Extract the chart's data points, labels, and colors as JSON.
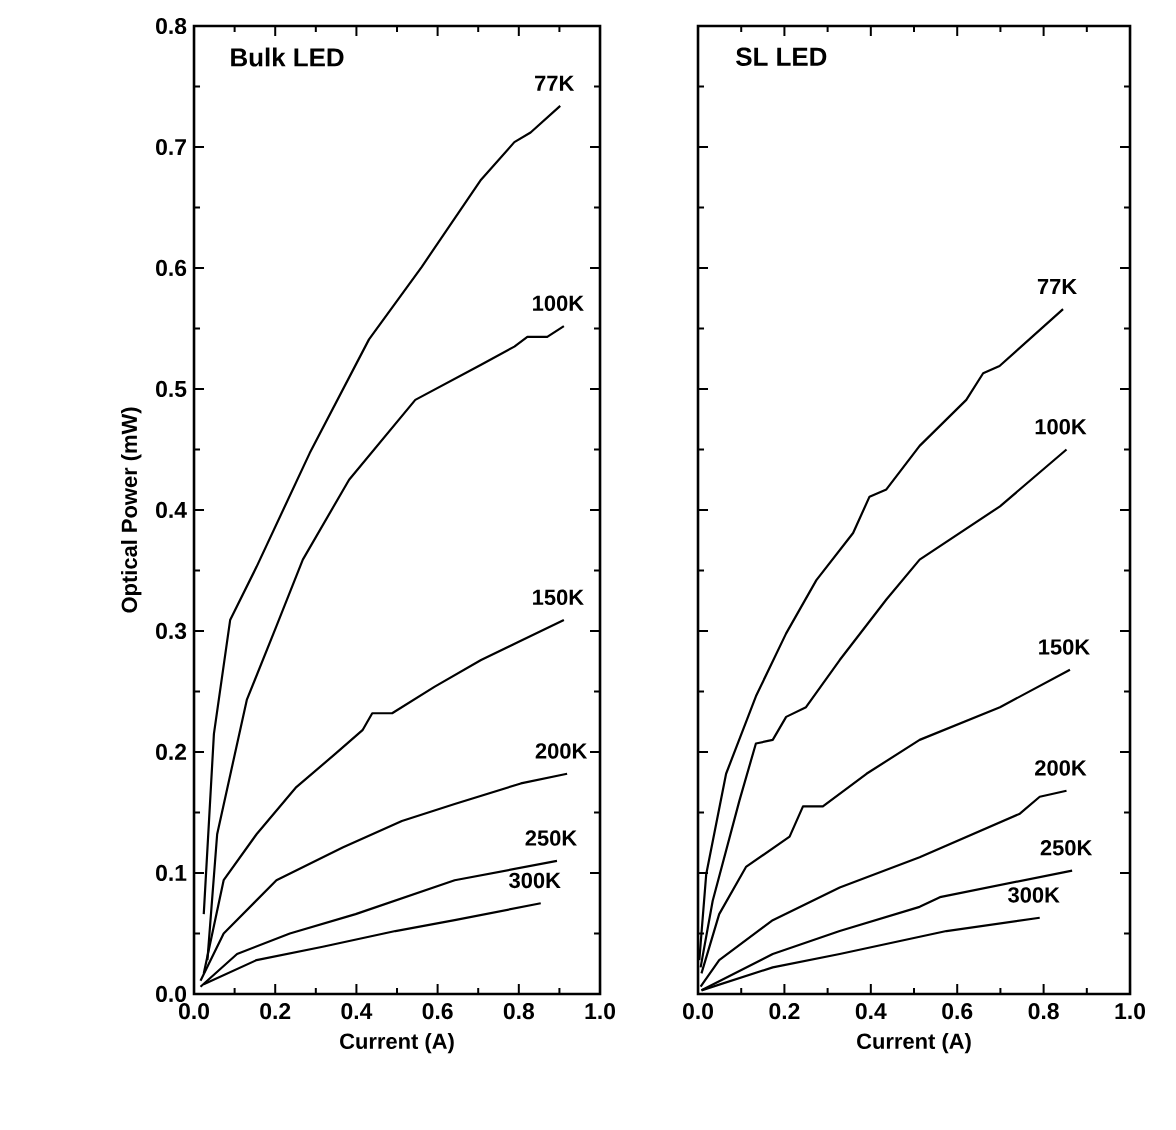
{
  "chart_data": [
    {
      "type": "line",
      "title": "Bulk LED",
      "xlabel": "Current (A)",
      "ylabel": "Optical Power (mW)",
      "xlim": [
        0,
        1
      ],
      "ylim": [
        0,
        0.8
      ],
      "xticks": [
        {
          "value": 0,
          "label": "0.0"
        },
        {
          "value": 0.2,
          "label": "0.2"
        },
        {
          "value": 0.4,
          "label": "0.4"
        },
        {
          "value": 0.6,
          "label": "0.6"
        },
        {
          "value": 0.8,
          "label": "0.8"
        },
        {
          "value": 1,
          "label": "1.0"
        }
      ],
      "yticks": [
        {
          "value": 0,
          "label": "0.0"
        },
        0.1,
        0.2,
        0.3,
        0.4,
        0.5,
        0.6,
        0.7,
        0.8
      ],
      "marker": "none",
      "line_style": "solid",
      "grid": false,
      "legend": "right",
      "series": [
        {
          "name": "77K",
          "color": "#000000",
          "x": [
            0.024,
            0.049,
            0.089,
            0.154,
            0.285,
            0.431,
            0.561,
            0.707,
            0.789,
            0.829,
            0.902
          ],
          "values": [
            0.066,
            0.215,
            0.309,
            0.353,
            0.447,
            0.541,
            0.601,
            0.673,
            0.704,
            0.712,
            0.734
          ]
        },
        {
          "name": "100K",
          "color": "#000000",
          "x": [
            0.033,
            0.057,
            0.13,
            0.203,
            0.268,
            0.382,
            0.545,
            0.707,
            0.789,
            0.821,
            0.87,
            0.911
          ],
          "values": [
            0.028,
            0.132,
            0.243,
            0.304,
            0.359,
            0.425,
            0.491,
            0.52,
            0.535,
            0.543,
            0.543,
            0.552
          ]
        },
        {
          "name": "150K",
          "color": "#000000",
          "x": [
            0.024,
            0.073,
            0.154,
            0.252,
            0.35,
            0.415,
            0.439,
            0.488,
            0.593,
            0.707,
            0.805,
            0.911
          ],
          "values": [
            0.017,
            0.094,
            0.132,
            0.171,
            0.199,
            0.218,
            0.232,
            0.232,
            0.254,
            0.276,
            0.292,
            0.309
          ]
        },
        {
          "name": "200K",
          "color": "#000000",
          "x": [
            0.016,
            0.073,
            0.203,
            0.366,
            0.512,
            0.642,
            0.805,
            0.919
          ],
          "values": [
            0.011,
            0.05,
            0.094,
            0.121,
            0.143,
            0.157,
            0.174,
            0.182
          ]
        },
        {
          "name": "250K",
          "color": "#000000",
          "x": [
            0.016,
            0.106,
            0.236,
            0.398,
            0.642,
            0.894
          ],
          "values": [
            0.006,
            0.033,
            0.05,
            0.066,
            0.094,
            0.11
          ]
        },
        {
          "name": "300K",
          "color": "#000000",
          "x": [
            0.024,
            0.154,
            0.317,
            0.496,
            0.642,
            0.854
          ],
          "values": [
            0.008,
            0.028,
            0.039,
            0.052,
            0.061,
            0.075
          ]
        }
      ]
    },
    {
      "type": "line",
      "title": "SL LED",
      "xlabel": "Current (A)",
      "xlim": [
        0,
        1
      ],
      "ylim": [
        0,
        0.8
      ],
      "tick_labels": "x",
      "xticks": [
        {
          "value": 0,
          "label": "0.0"
        },
        {
          "value": 0.2,
          "label": "0.2"
        },
        {
          "value": 0.4,
          "label": "0.4"
        },
        {
          "value": 0.6,
          "label": "0.6"
        },
        {
          "value": 0.8,
          "label": "0.8"
        },
        {
          "value": 1,
          "label": "1.0"
        }
      ],
      "yticks": [
        0,
        0.1,
        0.2,
        0.3,
        0.4,
        0.5,
        0.6,
        0.7,
        0.8
      ],
      "marker": "none",
      "line_style": "solid",
      "grid": false,
      "legend": "right",
      "series": [
        {
          "name": "77K",
          "color": "#000000",
          "x": [
            0.003,
            0.019,
            0.065,
            0.134,
            0.204,
            0.274,
            0.359,
            0.397,
            0.436,
            0.513,
            0.621,
            0.66,
            0.698,
            0.845
          ],
          "values": [
            0.028,
            0.099,
            0.182,
            0.246,
            0.298,
            0.342,
            0.381,
            0.411,
            0.417,
            0.453,
            0.491,
            0.513,
            0.519,
            0.566
          ]
        },
        {
          "name": "100K",
          "color": "#000000",
          "x": [
            0.006,
            0.034,
            0.096,
            0.134,
            0.173,
            0.204,
            0.25,
            0.328,
            0.436,
            0.513,
            0.699,
            0.853
          ],
          "values": [
            0.022,
            0.077,
            0.16,
            0.207,
            0.21,
            0.229,
            0.237,
            0.276,
            0.326,
            0.359,
            0.403,
            0.45
          ]
        },
        {
          "name": "150K",
          "color": "#000000",
          "x": [
            0.008,
            0.049,
            0.111,
            0.212,
            0.243,
            0.289,
            0.39,
            0.513,
            0.699,
            0.861
          ],
          "values": [
            0.017,
            0.066,
            0.105,
            0.13,
            0.155,
            0.155,
            0.182,
            0.21,
            0.237,
            0.268
          ]
        },
        {
          "name": "200K",
          "color": "#000000",
          "x": [
            0.006,
            0.049,
            0.173,
            0.328,
            0.513,
            0.745,
            0.791,
            0.853
          ],
          "values": [
            0.006,
            0.028,
            0.061,
            0.088,
            0.113,
            0.149,
            0.163,
            0.168
          ]
        },
        {
          "name": "250K",
          "color": "#000000",
          "x": [
            0.008,
            0.173,
            0.328,
            0.513,
            0.56,
            0.866
          ],
          "values": [
            0.003,
            0.033,
            0.052,
            0.072,
            0.08,
            0.102
          ]
        },
        {
          "name": "300K",
          "color": "#000000",
          "x": [
            0.008,
            0.173,
            0.328,
            0.575,
            0.791
          ],
          "values": [
            0.003,
            0.022,
            0.033,
            0.052,
            0.063
          ]
        }
      ]
    }
  ]
}
